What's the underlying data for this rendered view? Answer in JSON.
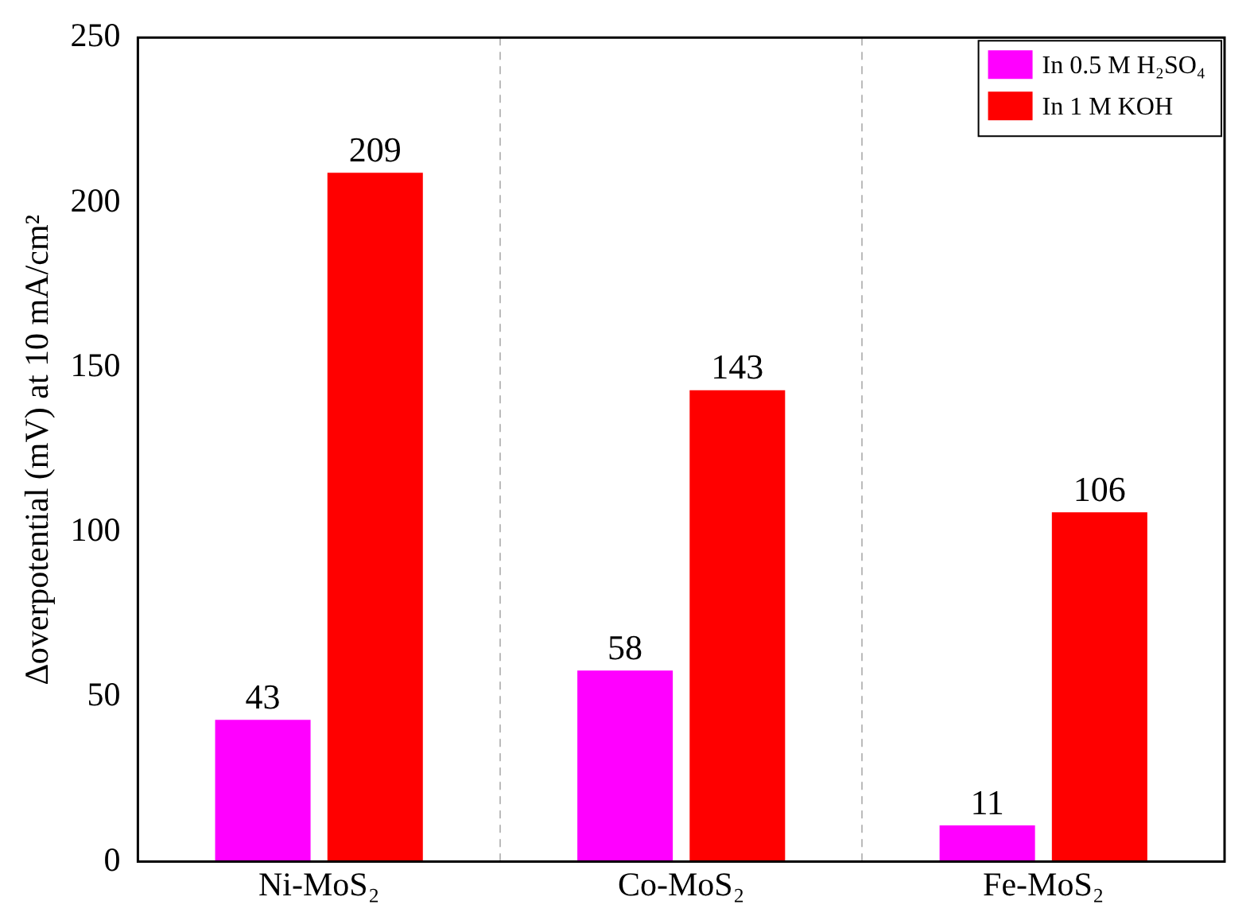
{
  "chart_data": {
    "type": "bar",
    "ylabel": "∆overpotential (mV) at 10 mA/cm²",
    "categories": [
      "Ni-MoS₂",
      "Co-MoS₂",
      "Fe-MoS₂"
    ],
    "series": [
      {
        "name": "In 0.5 M H₂SO₄",
        "color": "#ff00ff",
        "values": [
          43,
          58,
          11
        ]
      },
      {
        "name": "In 1 M KOH",
        "color": "#ff0000",
        "values": [
          209,
          143,
          106
        ]
      }
    ],
    "ylim": [
      0,
      250
    ],
    "yticks": [
      0,
      50,
      100,
      150,
      200,
      250
    ],
    "grid": "x",
    "legend": "top right",
    "data_labels": true
  }
}
